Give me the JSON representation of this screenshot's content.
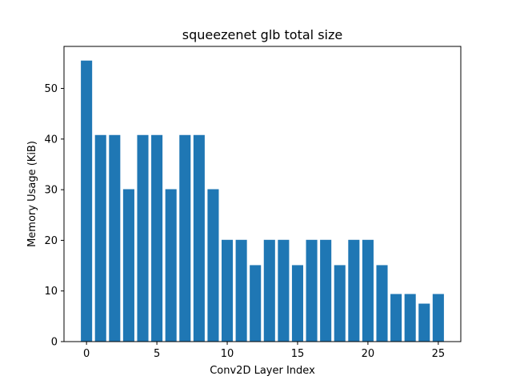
{
  "chart_data": {
    "type": "bar",
    "title": "squeezenet glb total size",
    "xlabel": "Conv2D Layer Index",
    "ylabel": "Memory Usage (KiB)",
    "x": [
      0,
      1,
      2,
      3,
      4,
      5,
      6,
      7,
      8,
      9,
      10,
      11,
      12,
      13,
      14,
      15,
      16,
      17,
      18,
      19,
      20,
      21,
      22,
      23,
      24,
      25
    ],
    "values": [
      55.5,
      40.8,
      40.8,
      30.1,
      40.8,
      40.8,
      30.1,
      40.8,
      40.8,
      30.1,
      20.1,
      20.1,
      15.1,
      20.1,
      20.1,
      15.1,
      20.1,
      20.1,
      15.1,
      20.1,
      20.1,
      15.1,
      9.4,
      9.4,
      7.5,
      9.4
    ],
    "xlim": [
      -1.6,
      26.6
    ],
    "ylim": [
      0,
      58.3
    ],
    "xticks": [
      0,
      5,
      10,
      15,
      20,
      25
    ],
    "yticks": [
      0,
      10,
      20,
      30,
      40,
      50
    ],
    "bar_color": "#1f77b4",
    "grid": false,
    "legend": "none"
  }
}
